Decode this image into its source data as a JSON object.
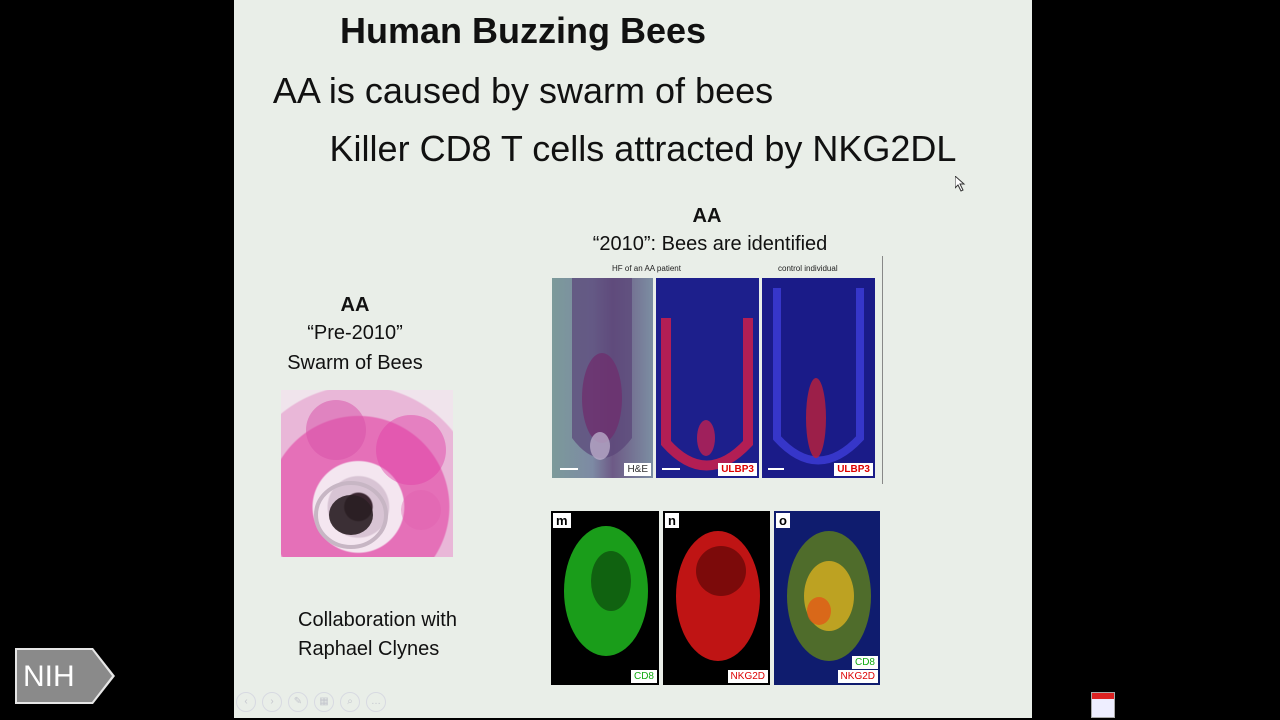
{
  "slide": {
    "title": "Human Buzzing Bees",
    "subtitle_line1": "AA is caused by swarm of bees",
    "subtitle_line2": "Killer CD8 T cells attracted by NKG2DL",
    "right_header": "AA",
    "right_subheader": "“2010”: Bees are identified",
    "left_header": "AA",
    "left_pre2010": "“Pre-2010”",
    "left_swarm": "Swarm of Bees",
    "collab_line1": "Collaboration with",
    "collab_line2": "Raphael Clynes"
  },
  "figure_top": {
    "caption_patient": "HF of an AA patient",
    "caption_control": "control individual",
    "label_he": "H&E",
    "label_ulbp3_a": "ULBP3",
    "label_ulbp3_b": "ULBP3"
  },
  "figure_bottom": {
    "letter_m": "m",
    "letter_n": "n",
    "letter_o": "o",
    "label_cd8": "CD8",
    "label_nkg2d": "NKG2D",
    "label_merge_cd8": "CD8",
    "label_merge_nkg2d": "NKG2D"
  },
  "branding": {
    "logo_text": "NIH"
  },
  "icons": [
    "cursor-icon",
    "nih-logo-icon",
    "slideshow-control-icons",
    "app-icon"
  ]
}
